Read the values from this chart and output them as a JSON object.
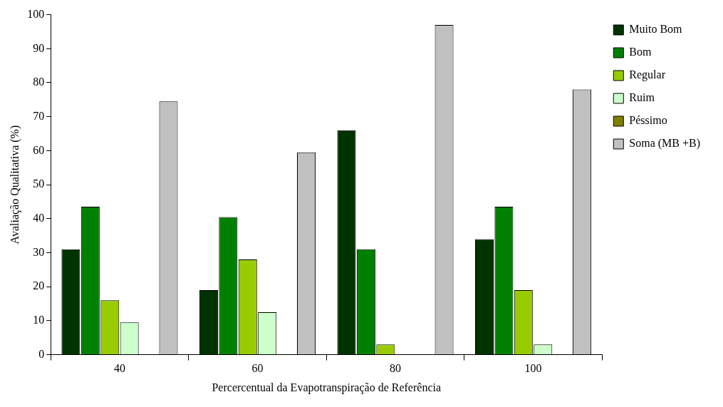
{
  "chart_data": {
    "type": "bar",
    "xlabel": "Percercentual da Evapotranspiração de Referência",
    "ylabel": "Avaliação Qualitativa (%)",
    "categories": [
      "40",
      "60",
      "80",
      "100"
    ],
    "series": [
      {
        "name": "Muito Bom",
        "color": "#003300",
        "values": [
          31,
          19,
          66,
          34
        ]
      },
      {
        "name": "Bom",
        "color": "#008000",
        "values": [
          43.5,
          40.5,
          31,
          43.5
        ]
      },
      {
        "name": "Regular",
        "color": "#99cc00",
        "values": [
          16,
          28,
          3,
          19
        ]
      },
      {
        "name": "Ruim",
        "color": "#ccffcc",
        "values": [
          9.5,
          12.5,
          0,
          3
        ]
      },
      {
        "name": "Péssimo",
        "color": "#808000",
        "values": [
          0,
          0,
          0,
          0
        ]
      },
      {
        "name": "Soma (MB +B)",
        "color": "#c0c0c0",
        "values": [
          74.5,
          59.5,
          97,
          78
        ]
      }
    ],
    "ylim": [
      0,
      100
    ],
    "yticks": [
      0,
      10,
      20,
      30,
      40,
      50,
      60,
      70,
      80,
      90,
      100
    ],
    "grid": false,
    "legend": "right"
  }
}
